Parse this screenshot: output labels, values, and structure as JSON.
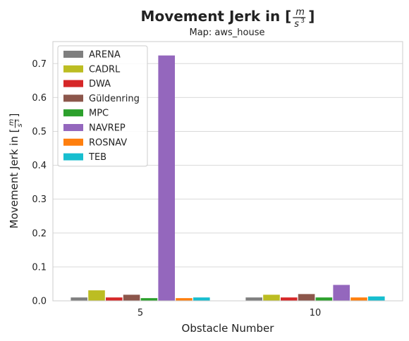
{
  "chart_data": {
    "type": "bar",
    "title": "Movement Jerk in [m/s³]",
    "title_parts": {
      "prefix": "Movement Jerk in [",
      "numerator": "m",
      "denominator": "s",
      "exponent": "3",
      "suffix": "]"
    },
    "subtitle": "Map: aws_house",
    "xlabel": "Obstacle Number",
    "ylabel": "Movement Jerk in [m/s³]",
    "ylabel_parts": {
      "prefix": "Movement Jerk in [",
      "numerator": "m",
      "denominator": "s",
      "exponent": "3",
      "suffix": "]"
    },
    "categories": [
      "5",
      "10"
    ],
    "ylim": [
      0,
      0.765
    ],
    "yticks": [
      0.0,
      0.1,
      0.2,
      0.3,
      0.4,
      0.5,
      0.6,
      0.7
    ],
    "ytick_labels": [
      "0.0",
      "0.1",
      "0.2",
      "0.3",
      "0.4",
      "0.5",
      "0.6",
      "0.7"
    ],
    "grid": true,
    "legend_position": "top-left",
    "series": [
      {
        "name": "ARENA",
        "color": "#7f7f7f",
        "values": [
          0.01,
          0.01
        ]
      },
      {
        "name": "CADRL",
        "color": "#bcbd22",
        "values": [
          0.031,
          0.018
        ]
      },
      {
        "name": "DWA",
        "color": "#d62728",
        "values": [
          0.01,
          0.01
        ]
      },
      {
        "name": "Güldenring",
        "color": "#8c564b",
        "values": [
          0.018,
          0.02
        ]
      },
      {
        "name": "MPC",
        "color": "#2ca02c",
        "values": [
          0.008,
          0.01
        ]
      },
      {
        "name": "NAVREP",
        "color": "#9467bd",
        "values": [
          0.724,
          0.047
        ]
      },
      {
        "name": "ROSNAV",
        "color": "#ff7f0e",
        "values": [
          0.008,
          0.01
        ]
      },
      {
        "name": "TEB",
        "color": "#17becf",
        "values": [
          0.01,
          0.013
        ]
      }
    ]
  }
}
